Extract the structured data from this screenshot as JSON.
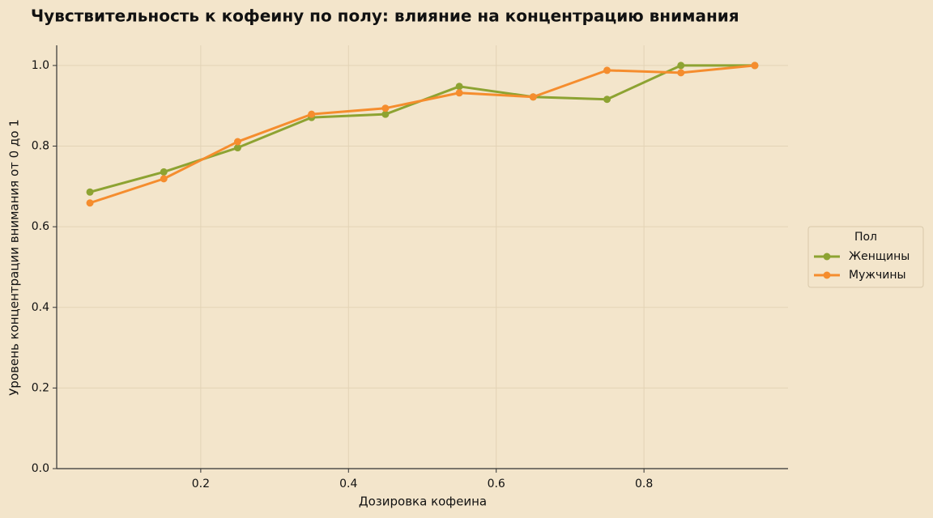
{
  "chart_data": {
    "type": "line",
    "title": "Чувствительность к кофеину по полу: влияние на концентрацию внимания",
    "xlabel": "Дозировка кофеина",
    "ylabel": "Уровень концентрации внимания от 0 до 1",
    "x": [
      0.05,
      0.15,
      0.25,
      0.35,
      0.45,
      0.55,
      0.65,
      0.75,
      0.85,
      0.95
    ],
    "series": [
      {
        "name": "Женщины",
        "color": "#8da332",
        "values": [
          0.686,
          0.736,
          0.796,
          0.871,
          0.879,
          0.948,
          0.922,
          0.916,
          1.0,
          1.0
        ]
      },
      {
        "name": "Мужчины",
        "color": "#f58d2e",
        "values": [
          0.659,
          0.719,
          0.811,
          0.879,
          0.894,
          0.932,
          0.922,
          0.988,
          0.982,
          1.0
        ]
      }
    ],
    "xlim": [
      0.005,
      0.995
    ],
    "ylim": [
      0,
      1.05
    ],
    "xticks": [
      0.2,
      0.4,
      0.6,
      0.8
    ],
    "yticks": [
      {
        "value": 0,
        "label": "0.0"
      },
      0.2,
      0.4,
      0.6,
      0.8,
      {
        "value": 1,
        "label": "1.0"
      }
    ],
    "grid": true,
    "legend_title": "Пол",
    "legend_position": "right"
  }
}
